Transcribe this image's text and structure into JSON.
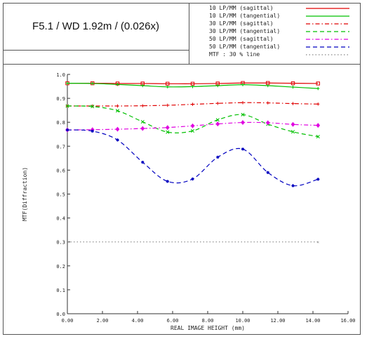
{
  "title": "F5.1 / WD 1.92m / (0.026x)",
  "legend": [
    {
      "label": "10 LP/MM (sagittal)",
      "color": "#e00000",
      "dash": "solid"
    },
    {
      "label": "10 LP/MM (tangential)",
      "color": "#00c000",
      "dash": "solid"
    },
    {
      "label": "30 LP/MM (sagittal)",
      "color": "#e00000",
      "dash": "dashdot"
    },
    {
      "label": "30 LP/MM (tangential)",
      "color": "#00c000",
      "dash": "dash"
    },
    {
      "label": "50 LP/MM (sagittal)",
      "color": "#e000e0",
      "dash": "dashdot"
    },
    {
      "label": "50 LP/MM (tangential)",
      "color": "#0000c0",
      "dash": "dash"
    },
    {
      "label": "MTF : 30 % line",
      "color": "#888888",
      "dash": "dot"
    }
  ],
  "chart_data": {
    "type": "line",
    "title": "F5.1 / WD 1.92m / (0.026x)",
    "xlabel": "REAL IMAGE HEIGHT (mm)",
    "ylabel": "MTF(Diffraction)",
    "xlim": [
      0,
      16
    ],
    "ylim": [
      0,
      1
    ],
    "x_ticks": [
      "0.00",
      "2.00",
      "4.00",
      "6.00",
      "8.00",
      "10.00",
      "12.00",
      "14.00",
      "16.00"
    ],
    "y_ticks": [
      "0.0",
      "0.1",
      "0.2",
      "0.3",
      "0.4",
      "0.5",
      "0.6",
      "0.7",
      "0.8",
      "0.9",
      "1.0"
    ],
    "grid": false,
    "series": [
      {
        "name": "10 LP/MM (sagittal)",
        "color": "#e00000",
        "dash": "solid",
        "marker": "square",
        "x": [
          0,
          1.43,
          2.86,
          4.29,
          5.71,
          7.14,
          8.57,
          10.0,
          11.43,
          12.86,
          14.29
        ],
        "y": [
          0.963,
          0.963,
          0.962,
          0.962,
          0.961,
          0.961,
          0.962,
          0.964,
          0.964,
          0.963,
          0.962
        ]
      },
      {
        "name": "10 LP/MM (tangential)",
        "color": "#00c000",
        "dash": "solid",
        "marker": "plus",
        "x": [
          0,
          1.43,
          2.86,
          4.29,
          5.71,
          7.14,
          8.57,
          10.0,
          11.43,
          12.86,
          14.29
        ],
        "y": [
          0.963,
          0.962,
          0.958,
          0.953,
          0.948,
          0.949,
          0.953,
          0.957,
          0.953,
          0.947,
          0.941
        ]
      },
      {
        "name": "30 LP/MM (sagittal)",
        "color": "#e00000",
        "dash": "dashdot",
        "marker": "plus",
        "x": [
          0,
          1.43,
          2.86,
          4.29,
          5.71,
          7.14,
          8.57,
          10.0,
          11.43,
          12.86,
          14.29
        ],
        "y": [
          0.868,
          0.868,
          0.868,
          0.869,
          0.871,
          0.875,
          0.879,
          0.882,
          0.881,
          0.878,
          0.876
        ]
      },
      {
        "name": "30 LP/MM (tangential)",
        "color": "#00c000",
        "dash": "dash",
        "marker": "x",
        "x": [
          0,
          1.43,
          2.86,
          4.29,
          5.71,
          7.14,
          8.57,
          10.0,
          11.43,
          12.86,
          14.29
        ],
        "y": [
          0.868,
          0.866,
          0.848,
          0.802,
          0.759,
          0.764,
          0.81,
          0.832,
          0.792,
          0.76,
          0.74
        ]
      },
      {
        "name": "50 LP/MM (sagittal)",
        "color": "#e000e0",
        "dash": "dashdot",
        "marker": "diamond",
        "x": [
          0,
          1.43,
          2.86,
          4.29,
          5.71,
          7.14,
          8.57,
          10.0,
          11.43,
          12.86,
          14.29
        ],
        "y": [
          0.768,
          0.769,
          0.771,
          0.774,
          0.778,
          0.785,
          0.793,
          0.799,
          0.798,
          0.791,
          0.787
        ]
      },
      {
        "name": "50 LP/MM (tangential)",
        "color": "#0000c0",
        "dash": "dash",
        "marker": "star",
        "x": [
          0,
          1.43,
          2.86,
          4.29,
          5.71,
          7.14,
          8.57,
          10.0,
          11.43,
          12.86,
          14.29
        ],
        "y": [
          0.768,
          0.763,
          0.726,
          0.633,
          0.553,
          0.563,
          0.654,
          0.688,
          0.59,
          0.535,
          0.562
        ]
      },
      {
        "name": "MTF : 30 % line",
        "color": "#888888",
        "dash": "dot",
        "marker": "none",
        "x": [
          0,
          14.29
        ],
        "y": [
          0.3,
          0.3
        ]
      }
    ]
  }
}
